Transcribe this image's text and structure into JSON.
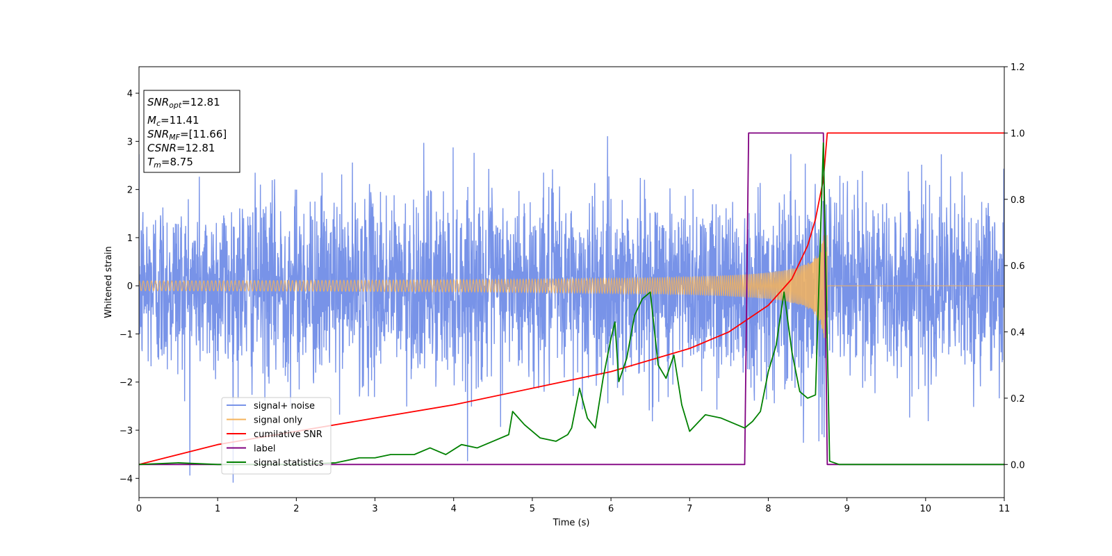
{
  "chart_data": {
    "type": "line",
    "xlabel": "Time (s)",
    "ylabel": "Whitened strain",
    "xlim": [
      0,
      11
    ],
    "ylim_left": [
      -4.4,
      4.55
    ],
    "ylim_right": [
      -0.1,
      1.2
    ],
    "xticks": [
      "0",
      "1",
      "2",
      "3",
      "4",
      "5",
      "6",
      "7",
      "8",
      "9",
      "10",
      "11"
    ],
    "yticks_left": [
      "−4",
      "−3",
      "−2",
      "−1",
      "0",
      "1",
      "2",
      "3",
      "4"
    ],
    "yticks_right": [
      "0.0",
      "0.2",
      "0.4",
      "0.6",
      "0.8",
      "1.0",
      "1.2"
    ],
    "grid": false,
    "legend_position": "lower-left",
    "info_box": {
      "snr_opt": {
        "sym": "SNR",
        "sub": "opt",
        "value": "=12.81"
      },
      "mc": {
        "sym": "M",
        "sub": "c",
        "value": "=11.41"
      },
      "snr_mf": {
        "sym": "SNR",
        "sub": "MF",
        "value": "=[11.66]"
      },
      "csnr": {
        "sym": "CSNR",
        "value": "=12.81"
      },
      "tm": {
        "sym": "T",
        "sub": "m",
        "value": "=8.75"
      }
    },
    "series": [
      {
        "name": "signal+ noise",
        "color": "#7893e8",
        "axis": "left",
        "noise_std": 1.0,
        "merger_time": 8.75
      },
      {
        "name": "signal only",
        "color": "#f5b35b",
        "axis": "left",
        "merger_time": 8.75,
        "peak_amplitude": 1.1
      },
      {
        "name": "cumilative SNR",
        "color": "#ff0000",
        "axis": "right",
        "x": [
          0,
          1,
          2,
          3,
          4,
          5,
          6,
          7,
          7.5,
          8,
          8.3,
          8.5,
          8.6,
          8.7,
          8.75,
          11
        ],
        "y": [
          0.0,
          0.06,
          0.1,
          0.14,
          0.18,
          0.23,
          0.28,
          0.35,
          0.4,
          0.48,
          0.56,
          0.66,
          0.74,
          0.86,
          1.0,
          1.0
        ]
      },
      {
        "name": "label",
        "color": "#800080",
        "axis": "right",
        "x": [
          0,
          7.7,
          7.75,
          8.7,
          8.75,
          11
        ],
        "y": [
          0,
          0,
          1,
          1,
          0,
          0
        ]
      },
      {
        "name": "signal statistics",
        "color": "#008000",
        "axis": "right",
        "x": [
          0,
          0.5,
          1,
          1.5,
          2,
          2.5,
          2.8,
          3.0,
          3.2,
          3.5,
          3.7,
          3.9,
          4.1,
          4.3,
          4.5,
          4.7,
          4.75,
          4.9,
          5.1,
          5.3,
          5.45,
          5.5,
          5.6,
          5.7,
          5.8,
          5.9,
          6.0,
          6.05,
          6.1,
          6.2,
          6.3,
          6.4,
          6.5,
          6.6,
          6.7,
          6.8,
          6.9,
          7.0,
          7.2,
          7.4,
          7.6,
          7.7,
          7.8,
          7.9,
          8.0,
          8.1,
          8.2,
          8.3,
          8.4,
          8.5,
          8.6,
          8.7,
          8.78,
          8.9,
          9.5,
          10,
          11
        ],
        "y": [
          0,
          0.005,
          0,
          0,
          0,
          0.005,
          0.02,
          0.02,
          0.03,
          0.03,
          0.05,
          0.03,
          0.06,
          0.05,
          0.07,
          0.09,
          0.16,
          0.12,
          0.08,
          0.07,
          0.09,
          0.11,
          0.23,
          0.14,
          0.11,
          0.26,
          0.38,
          0.43,
          0.25,
          0.32,
          0.45,
          0.5,
          0.52,
          0.3,
          0.26,
          0.33,
          0.18,
          0.1,
          0.15,
          0.14,
          0.12,
          0.11,
          0.13,
          0.16,
          0.28,
          0.36,
          0.52,
          0.34,
          0.22,
          0.2,
          0.21,
          0.97,
          0.01,
          0,
          0,
          0,
          0
        ]
      }
    ]
  }
}
